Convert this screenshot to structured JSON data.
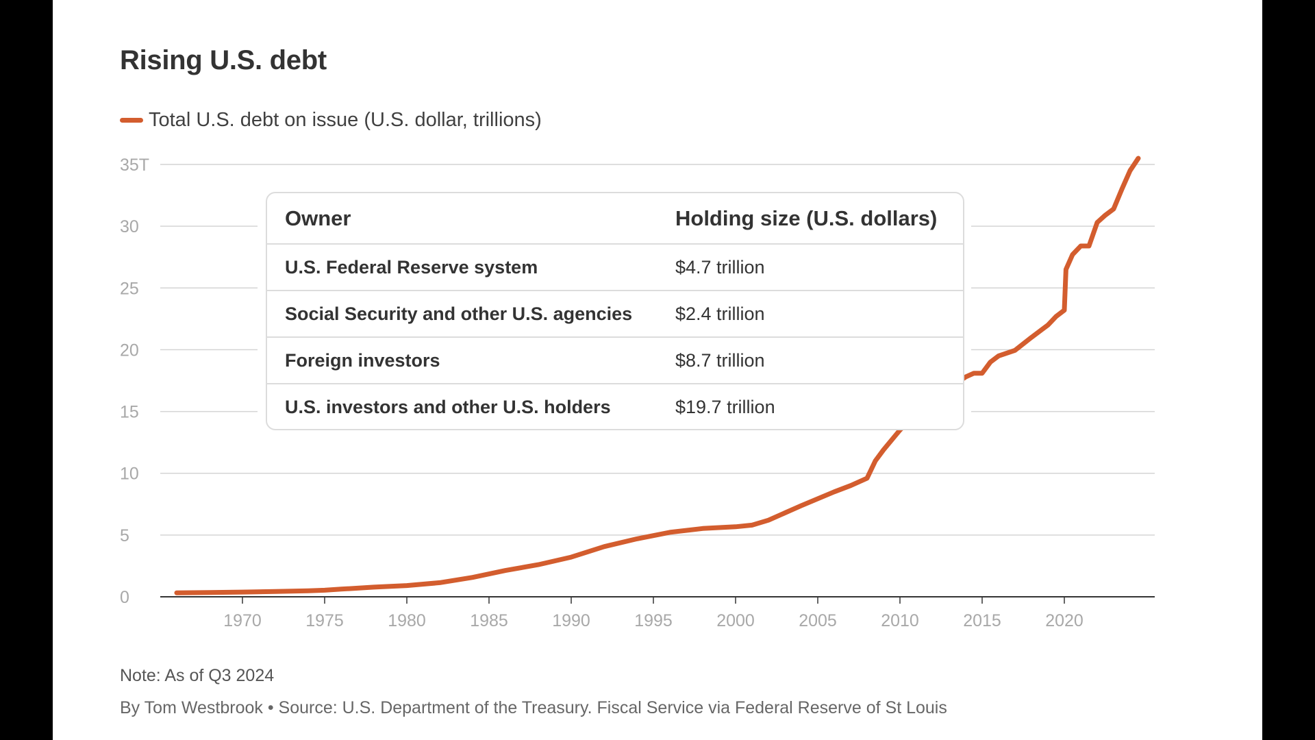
{
  "title": "Rising U.S. debt",
  "legend": {
    "label": "Total U.S. debt on issue (U.S. dollar, trillions)",
    "color": "#d35d2e"
  },
  "note": "Note: As of Q3 2024",
  "source": "By Tom Westbrook • Source: U.S. Department of the Treasury. Fiscal Service via Federal Reserve of St Louis",
  "table": {
    "headers": [
      "Owner",
      "Holding size (U.S. dollars)"
    ],
    "rows": [
      {
        "owner": "U.S. Federal Reserve system",
        "holding": "$4.7 trillion"
      },
      {
        "owner": "Social Security and other U.S. agencies",
        "holding": "$2.4 trillion"
      },
      {
        "owner": "Foreign investors",
        "holding": "$8.7 trillion"
      },
      {
        "owner": "U.S. investors and other U.S. holders",
        "holding": "$19.7 trillion"
      }
    ]
  },
  "chart_data": {
    "type": "line",
    "title": "Rising U.S. debt",
    "xlabel": "",
    "ylabel": "",
    "xlim": [
      1965,
      2025.5
    ],
    "ylim": [
      0,
      35
    ],
    "y_ticks": [
      0,
      5,
      10,
      15,
      20,
      25,
      30,
      35
    ],
    "y_tick_labels": [
      "0",
      "5",
      "10",
      "15",
      "20",
      "25",
      "30",
      "35T"
    ],
    "x_ticks": [
      1970,
      1975,
      1980,
      1985,
      1990,
      1995,
      2000,
      2005,
      2010,
      2015,
      2020
    ],
    "x_tick_labels": [
      "1970",
      "1975",
      "1980",
      "1985",
      "1990",
      "1995",
      "2000",
      "2005",
      "2010",
      "2015",
      "2020"
    ],
    "grid": true,
    "legend_position": "top-left",
    "series": [
      {
        "name": "Total U.S. debt on issue (U.S. dollar, trillions)",
        "color": "#d35d2e",
        "x": [
          1966,
          1968,
          1970,
          1972,
          1974,
          1975,
          1976,
          1978,
          1980,
          1982,
          1984,
          1986,
          1988,
          1990,
          1992,
          1994,
          1996,
          1998,
          2000,
          2001,
          2002,
          2004,
          2006,
          2007,
          2008,
          2008.5,
          2009,
          2010,
          2011,
          2012,
          2013,
          2014,
          2014.5,
          2015,
          2015.5,
          2016,
          2017,
          2018,
          2019,
          2019.5,
          2020,
          2020.1,
          2020.5,
          2021,
          2021.5,
          2022,
          2022.5,
          2023,
          2023.5,
          2024,
          2024.5
        ],
        "y": [
          0.32,
          0.35,
          0.38,
          0.43,
          0.48,
          0.53,
          0.62,
          0.78,
          0.91,
          1.14,
          1.57,
          2.13,
          2.6,
          3.21,
          4.06,
          4.69,
          5.22,
          5.53,
          5.67,
          5.8,
          6.2,
          7.38,
          8.5,
          9.0,
          9.6,
          11.0,
          11.9,
          13.5,
          14.8,
          16.1,
          16.9,
          17.8,
          18.1,
          18.1,
          19.0,
          19.5,
          19.95,
          21.0,
          22.0,
          22.7,
          23.2,
          26.5,
          27.7,
          28.4,
          28.4,
          30.3,
          30.9,
          31.4,
          33.0,
          34.5,
          35.5
        ]
      }
    ]
  }
}
